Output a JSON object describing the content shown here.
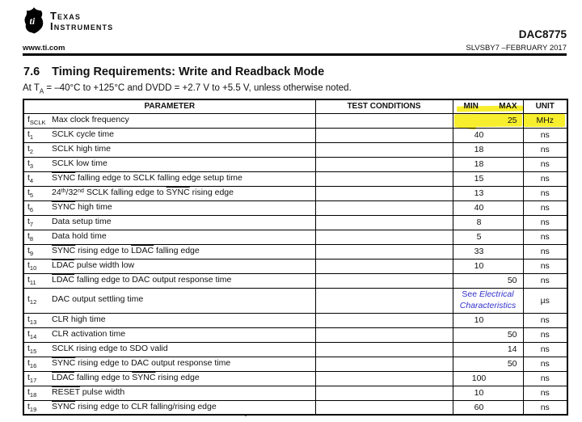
{
  "brand": {
    "line1": "TEXAS",
    "line2": "INSTRUMENTS"
  },
  "header": {
    "part_number": "DAC8775",
    "website": "www.ti.com",
    "doc_code": "SLVSBY7 –FEBRUARY 2017"
  },
  "section": {
    "number": "7.6",
    "title": "Timing Requirements: Write and Readback Mode",
    "conditions_parts": [
      {
        "t": "At T"
      },
      {
        "t": "A",
        "sub": true
      },
      {
        "t": " = –40°C to +125°C and DVDD = +2.7 V to +5.5 V, unless otherwise noted."
      }
    ]
  },
  "colors": {
    "highlight_yellow": "#f7ee2e",
    "link_blue": "#3333cc",
    "text": "#111111"
  },
  "table": {
    "headers": {
      "parameter": "PARAMETER",
      "test_conditions": "TEST CONDITIONS",
      "min": "MIN",
      "max": "MAX",
      "unit": "UNIT"
    },
    "rows": [
      {
        "symbol": {
          "base": "f",
          "sub": "SCLK"
        },
        "parameter": [
          {
            "t": "Max clock frequency"
          }
        ],
        "test_conditions": "",
        "min": "",
        "max": "25",
        "unit": "MHz",
        "highlight": true
      },
      {
        "symbol": {
          "base": "t",
          "sub": "1"
        },
        "parameter": [
          {
            "t": "SCLK cycle time"
          }
        ],
        "test_conditions": "",
        "min": "40",
        "max": "",
        "unit": "ns"
      },
      {
        "symbol": {
          "base": "t",
          "sub": "2"
        },
        "parameter": [
          {
            "t": "SCLK high time"
          }
        ],
        "test_conditions": "",
        "min": "18",
        "max": "",
        "unit": "ns"
      },
      {
        "symbol": {
          "base": "t",
          "sub": "3"
        },
        "parameter": [
          {
            "t": "SCLK low time"
          }
        ],
        "test_conditions": "",
        "min": "18",
        "max": "",
        "unit": "ns"
      },
      {
        "symbol": {
          "base": "t",
          "sub": "4"
        },
        "parameter": [
          {
            "t": "SYNC",
            "overline": true
          },
          {
            "t": " falling edge to SCLK falling edge setup time"
          }
        ],
        "test_conditions": "",
        "min": "15",
        "max": "",
        "unit": "ns"
      },
      {
        "symbol": {
          "base": "t",
          "sub": "5"
        },
        "parameter": [
          {
            "t": "24"
          },
          {
            "t": "th",
            "sup": true
          },
          {
            "t": "/32"
          },
          {
            "t": "nd",
            "sup": true
          },
          {
            "t": " SCLK falling edge to "
          },
          {
            "t": "SYNC",
            "overline": true
          },
          {
            "t": " rising edge"
          }
        ],
        "test_conditions": "",
        "min": "13",
        "max": "",
        "unit": "ns"
      },
      {
        "symbol": {
          "base": "t",
          "sub": "6"
        },
        "parameter": [
          {
            "t": "SYNC",
            "overline": true
          },
          {
            "t": " high time"
          }
        ],
        "test_conditions": "",
        "min": "40",
        "max": "",
        "unit": "ns"
      },
      {
        "symbol": {
          "base": "t",
          "sub": "7"
        },
        "parameter": [
          {
            "t": "Data setup time"
          }
        ],
        "test_conditions": "",
        "min": "8",
        "max": "",
        "unit": "ns"
      },
      {
        "symbol": {
          "base": "t",
          "sub": "8"
        },
        "parameter": [
          {
            "t": "Data hold time"
          }
        ],
        "test_conditions": "",
        "min": "5",
        "max": "",
        "unit": "ns"
      },
      {
        "symbol": {
          "base": "t",
          "sub": "9"
        },
        "parameter": [
          {
            "t": "SYNC",
            "overline": true
          },
          {
            "t": " rising edge to "
          },
          {
            "t": "LDAC",
            "overline": true
          },
          {
            "t": " falling edge"
          }
        ],
        "test_conditions": "",
        "min": "33",
        "max": "",
        "unit": "ns"
      },
      {
        "symbol": {
          "base": "t",
          "sub": "10"
        },
        "parameter": [
          {
            "t": "LDAC",
            "overline": true
          },
          {
            "t": " pulse width low"
          }
        ],
        "test_conditions": "",
        "min": "10",
        "max": "",
        "unit": "ns"
      },
      {
        "symbol": {
          "base": "t",
          "sub": "11"
        },
        "parameter": [
          {
            "t": "LDAC",
            "overline": true
          },
          {
            "t": " falling edge to DAC output response time"
          }
        ],
        "test_conditions": "",
        "min": "",
        "max": "50",
        "unit": "ns"
      },
      {
        "symbol": {
          "base": "t",
          "sub": "12"
        },
        "parameter": [
          {
            "t": "DAC output settling time"
          }
        ],
        "test_conditions": "",
        "min_note": {
          "prefix": "See ",
          "link": "Electrical Characteristics"
        },
        "unit": "µs",
        "tall": true
      },
      {
        "symbol": {
          "base": "t",
          "sub": "13"
        },
        "parameter": [
          {
            "t": "CLR high time"
          }
        ],
        "test_conditions": "",
        "min": "10",
        "max": "",
        "unit": "ns"
      },
      {
        "symbol": {
          "base": "t",
          "sub": "14"
        },
        "parameter": [
          {
            "t": "CLR activation time"
          }
        ],
        "test_conditions": "",
        "min": "",
        "max": "50",
        "unit": "ns"
      },
      {
        "symbol": {
          "base": "t",
          "sub": "15"
        },
        "parameter": [
          {
            "t": "SCLK rising edge to SDO valid"
          }
        ],
        "test_conditions": "",
        "min": "",
        "max": "14",
        "unit": "ns"
      },
      {
        "symbol": {
          "base": "t",
          "sub": "16"
        },
        "parameter": [
          {
            "t": "SYNC",
            "overline": true
          },
          {
            "t": " rising edge to DAC output response time"
          }
        ],
        "test_conditions": "",
        "min": "",
        "max": "50",
        "unit": "ns"
      },
      {
        "symbol": {
          "base": "t",
          "sub": "17"
        },
        "parameter": [
          {
            "t": "LDAC",
            "overline": true
          },
          {
            "t": " falling edge to "
          },
          {
            "t": "SYNC",
            "overline": true
          },
          {
            "t": " rising edge"
          }
        ],
        "test_conditions": "",
        "min": "100",
        "max": "",
        "unit": "ns"
      },
      {
        "symbol": {
          "base": "t",
          "sub": "18"
        },
        "parameter": [
          {
            "t": "RESET",
            "overline": true
          },
          {
            "t": " pulse width"
          }
        ],
        "test_conditions": "",
        "min": "10",
        "max": "",
        "unit": "ns"
      },
      {
        "symbol": {
          "base": "t",
          "sub": "19"
        },
        "parameter": [
          {
            "t": "SYNC",
            "overline": true
          },
          {
            "t": " rising edge to CLR falling/rising edge"
          }
        ],
        "test_conditions": "",
        "min": "60",
        "max": "",
        "unit": "ns"
      }
    ]
  }
}
